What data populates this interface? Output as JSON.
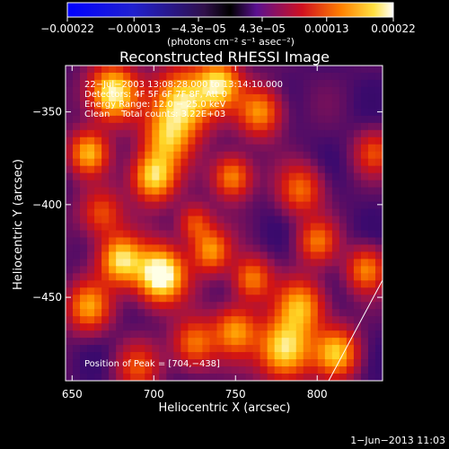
{
  "chart_data": {
    "type": "heatmap",
    "title": "Reconstructed RHESSI Image",
    "xlabel": "Heliocentric X (arcsec)",
    "ylabel": "Heliocentric Y (arcsec)",
    "xlim": [
      646,
      840
    ],
    "ylim": [
      -495,
      -325
    ],
    "x_ticks": [
      650,
      700,
      750,
      800
    ],
    "x_tick_labels": [
      "650",
      "700",
      "750",
      "800"
    ],
    "y_ticks": [
      -350,
      -400,
      -450
    ],
    "y_tick_labels": [
      "−350",
      "−400",
      "−450"
    ],
    "colorbar": {
      "colormap": "black-purple-red-yellow-white with blue negatives",
      "ticks": [
        -0.00022,
        -0.00013,
        -4.3e-05,
        4.3e-05,
        0.00013,
        0.00022
      ],
      "tick_labels": [
        "−0.00022",
        "−0.00013",
        "−4.3e−05",
        "4.3e−05",
        "0.00013",
        "0.00022"
      ],
      "units": "(photons cm⁻² s⁻¹ asec⁻²)"
    },
    "info_lines": [
      "22−Jul−2003 13:08:28.000 to 13:14:10.000",
      "Detectors: 4F 5F 6F 7F 8F, Att 0",
      "Energy Range: 12.0 − 25.0 keV",
      "Clean    Total counts: 3.22E+03"
    ],
    "peak_label": "Position of Peak = [704,−438]",
    "peak_position": [
      704,
      -438
    ],
    "blobs": [
      {
        "x": 675,
        "y": -340,
        "v": 0.85,
        "s": 10
      },
      {
        "x": 718,
        "y": -345,
        "v": 0.8,
        "s": 12
      },
      {
        "x": 740,
        "y": -335,
        "v": 0.7,
        "s": 9
      },
      {
        "x": 708,
        "y": -365,
        "v": 0.55,
        "s": 10
      },
      {
        "x": 660,
        "y": -372,
        "v": 0.6,
        "s": 8
      },
      {
        "x": 765,
        "y": -350,
        "v": 0.55,
        "s": 9
      },
      {
        "x": 700,
        "y": -385,
        "v": 0.75,
        "s": 9
      },
      {
        "x": 748,
        "y": -385,
        "v": 0.55,
        "s": 8
      },
      {
        "x": 790,
        "y": -392,
        "v": 0.45,
        "s": 9
      },
      {
        "x": 668,
        "y": -405,
        "v": 0.4,
        "s": 9
      },
      {
        "x": 725,
        "y": -410,
        "v": 0.4,
        "s": 7
      },
      {
        "x": 735,
        "y": -425,
        "v": 0.55,
        "s": 8
      },
      {
        "x": 680,
        "y": -430,
        "v": 0.75,
        "s": 9
      },
      {
        "x": 704,
        "y": -438,
        "v": 1.0,
        "s": 10
      },
      {
        "x": 660,
        "y": -455,
        "v": 0.55,
        "s": 9
      },
      {
        "x": 760,
        "y": -440,
        "v": 0.5,
        "s": 8
      },
      {
        "x": 800,
        "y": -420,
        "v": 0.45,
        "s": 8
      },
      {
        "x": 830,
        "y": -435,
        "v": 0.5,
        "s": 8
      },
      {
        "x": 790,
        "y": -455,
        "v": 0.6,
        "s": 10
      },
      {
        "x": 750,
        "y": -468,
        "v": 0.55,
        "s": 9
      },
      {
        "x": 725,
        "y": -475,
        "v": 0.5,
        "s": 9
      },
      {
        "x": 780,
        "y": -478,
        "v": 0.8,
        "s": 11
      },
      {
        "x": 812,
        "y": -480,
        "v": 0.65,
        "s": 9
      },
      {
        "x": 690,
        "y": -488,
        "v": 0.35,
        "s": 9
      },
      {
        "x": 835,
        "y": -372,
        "v": 0.35,
        "s": 8
      }
    ]
  },
  "footer_timestamp": "1−Jun−2013 11:03"
}
